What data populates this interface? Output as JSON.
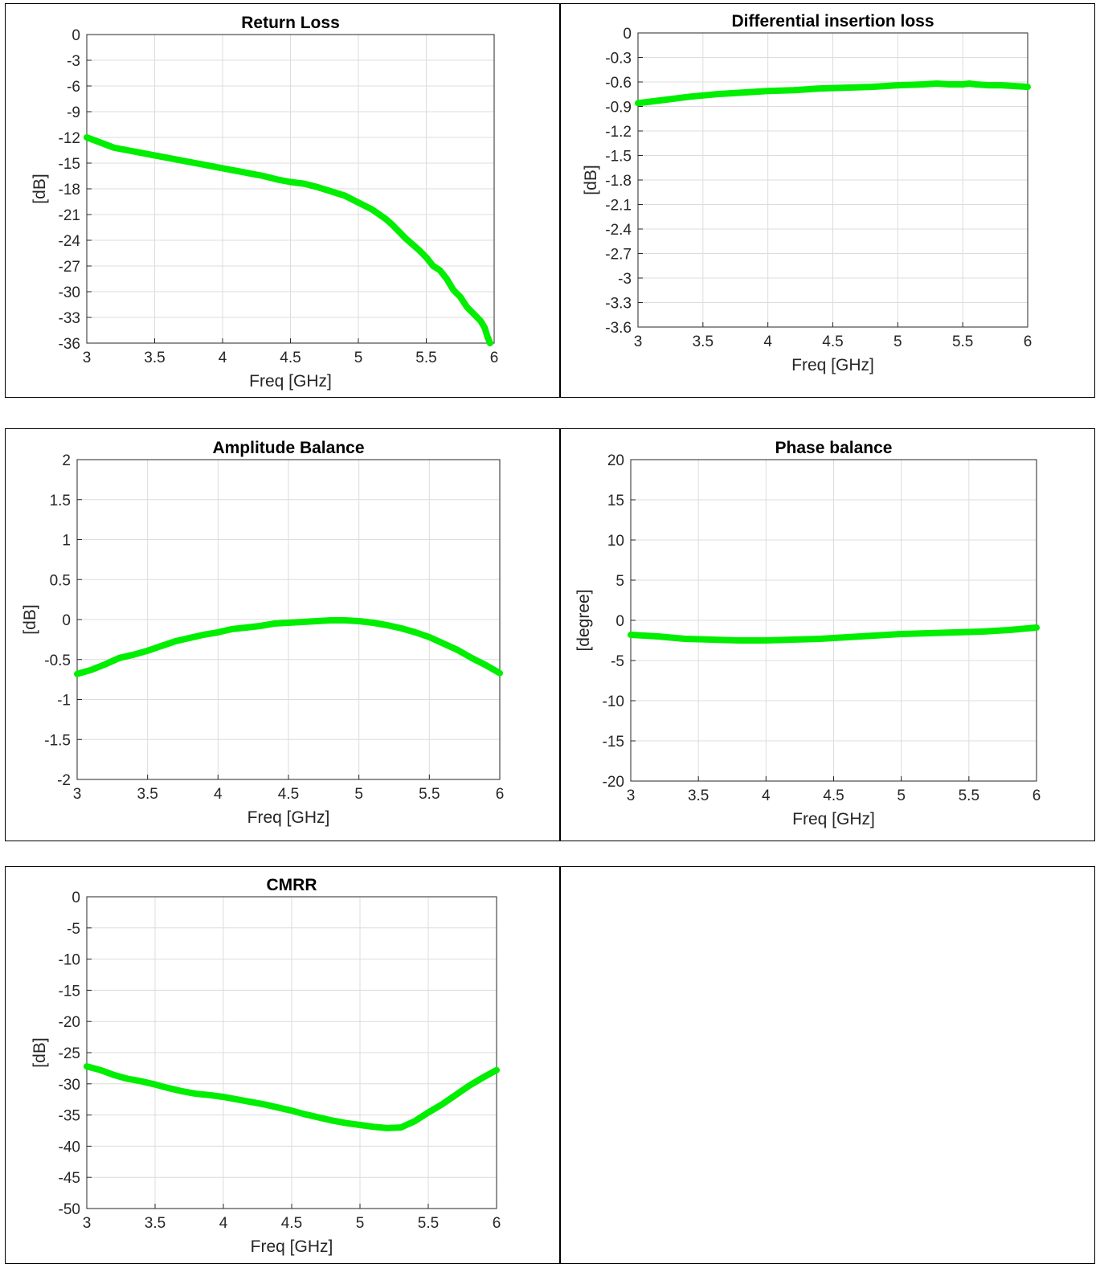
{
  "chart_data": [
    {
      "id": "return-loss",
      "type": "line",
      "title": "Return Loss",
      "xlabel": "Freq [GHz]",
      "ylabel": "[dB]",
      "xlim": [
        3,
        6
      ],
      "ylim": [
        -36,
        0
      ],
      "xticks": [
        3,
        3.5,
        4,
        4.5,
        5,
        5.5,
        6
      ],
      "yticks": [
        0,
        -3,
        -6,
        -9,
        -12,
        -15,
        -18,
        -21,
        -24,
        -27,
        -30,
        -33,
        -36
      ],
      "grid": true,
      "series": [
        {
          "color": "#00ee00",
          "x": [
            3.0,
            3.1,
            3.2,
            3.3,
            3.4,
            3.5,
            3.6,
            3.7,
            3.8,
            3.9,
            4.0,
            4.1,
            4.2,
            4.3,
            4.4,
            4.5,
            4.6,
            4.7,
            4.8,
            4.9,
            5.0,
            5.1,
            5.2,
            5.25,
            5.3,
            5.35,
            5.4,
            5.45,
            5.5,
            5.55,
            5.6,
            5.65,
            5.7,
            5.75,
            5.8,
            5.85,
            5.9,
            5.93,
            5.95,
            5.97
          ],
          "y": [
            -12.0,
            -12.6,
            -13.2,
            -13.5,
            -13.8,
            -14.1,
            -14.4,
            -14.7,
            -15.0,
            -15.3,
            -15.6,
            -15.9,
            -16.2,
            -16.5,
            -16.9,
            -17.2,
            -17.4,
            -17.8,
            -18.3,
            -18.8,
            -19.6,
            -20.4,
            -21.5,
            -22.2,
            -23.0,
            -23.8,
            -24.5,
            -25.2,
            -26.0,
            -27.0,
            -27.5,
            -28.5,
            -29.8,
            -30.6,
            -31.8,
            -32.6,
            -33.4,
            -34.2,
            -35.2,
            -36.0
          ]
        }
      ]
    },
    {
      "id": "differential-insertion-loss",
      "type": "line",
      "title": "Differential insertion loss",
      "xlabel": "Freq [GHz]",
      "ylabel": "[dB]",
      "xlim": [
        3,
        6
      ],
      "ylim": [
        -3.6,
        0
      ],
      "xticks": [
        3,
        3.5,
        4,
        4.5,
        5,
        5.5,
        6
      ],
      "yticks": [
        0,
        -0.3,
        -0.6,
        -0.9,
        -1.2,
        -1.5,
        -1.8,
        -2.1,
        -2.4,
        -2.7,
        -3,
        -3.3,
        -3.6
      ],
      "grid": true,
      "series": [
        {
          "color": "#00ee00",
          "x": [
            3.0,
            3.2,
            3.4,
            3.6,
            3.8,
            4.0,
            4.2,
            4.4,
            4.6,
            4.8,
            5.0,
            5.2,
            5.3,
            5.4,
            5.5,
            5.55,
            5.6,
            5.7,
            5.8,
            5.9,
            6.0
          ],
          "y": [
            -0.86,
            -0.82,
            -0.78,
            -0.75,
            -0.73,
            -0.71,
            -0.7,
            -0.68,
            -0.67,
            -0.66,
            -0.64,
            -0.63,
            -0.62,
            -0.63,
            -0.63,
            -0.62,
            -0.63,
            -0.64,
            -0.64,
            -0.65,
            -0.66
          ]
        }
      ]
    },
    {
      "id": "amplitude-balance",
      "type": "line",
      "title": "Amplitude Balance",
      "xlabel": "Freq [GHz]",
      "ylabel": "[dB]",
      "xlim": [
        3,
        6
      ],
      "ylim": [
        -2,
        2
      ],
      "xticks": [
        3,
        3.5,
        4,
        4.5,
        5,
        5.5,
        6
      ],
      "yticks": [
        2,
        1.5,
        1,
        0.5,
        0,
        -0.5,
        -1,
        -1.5,
        -2
      ],
      "grid": true,
      "series": [
        {
          "color": "#00ee00",
          "x": [
            3.0,
            3.1,
            3.2,
            3.3,
            3.4,
            3.5,
            3.6,
            3.7,
            3.8,
            3.9,
            4.0,
            4.1,
            4.2,
            4.3,
            4.4,
            4.5,
            4.6,
            4.7,
            4.8,
            4.9,
            5.0,
            5.1,
            5.2,
            5.3,
            5.4,
            5.5,
            5.6,
            5.7,
            5.8,
            5.9,
            6.0
          ],
          "y": [
            -0.68,
            -0.63,
            -0.56,
            -0.48,
            -0.44,
            -0.39,
            -0.33,
            -0.27,
            -0.23,
            -0.19,
            -0.16,
            -0.12,
            -0.1,
            -0.08,
            -0.05,
            -0.04,
            -0.03,
            -0.02,
            -0.01,
            -0.01,
            -0.02,
            -0.04,
            -0.07,
            -0.11,
            -0.16,
            -0.22,
            -0.3,
            -0.38,
            -0.48,
            -0.57,
            -0.67
          ]
        }
      ]
    },
    {
      "id": "phase-balance",
      "type": "line",
      "title": "Phase balance",
      "xlabel": "Freq [GHz]",
      "ylabel": "[degree]",
      "xlim": [
        3,
        6
      ],
      "ylim": [
        -20,
        20
      ],
      "xticks": [
        3,
        3.5,
        4,
        4.5,
        5,
        5.5,
        6
      ],
      "yticks": [
        20,
        15,
        10,
        5,
        0,
        -5,
        -10,
        -15,
        -20
      ],
      "grid": true,
      "series": [
        {
          "color": "#00ee00",
          "x": [
            3.0,
            3.2,
            3.4,
            3.6,
            3.8,
            4.0,
            4.2,
            4.4,
            4.6,
            4.8,
            5.0,
            5.2,
            5.4,
            5.6,
            5.8,
            6.0
          ],
          "y": [
            -1.8,
            -2.0,
            -2.3,
            -2.4,
            -2.5,
            -2.5,
            -2.4,
            -2.3,
            -2.1,
            -1.9,
            -1.7,
            -1.6,
            -1.5,
            -1.4,
            -1.2,
            -0.9
          ]
        }
      ]
    },
    {
      "id": "cmrr",
      "type": "line",
      "title": "CMRR",
      "xlabel": "Freq [GHz]",
      "ylabel": "[dB]",
      "xlim": [
        3,
        6
      ],
      "ylim": [
        -50,
        0
      ],
      "xticks": [
        3,
        3.5,
        4,
        4.5,
        5,
        5.5,
        6
      ],
      "yticks": [
        0,
        -5,
        -10,
        -15,
        -20,
        -25,
        -30,
        -35,
        -40,
        -45,
        -50
      ],
      "grid": true,
      "series": [
        {
          "color": "#00ee00",
          "x": [
            3.0,
            3.1,
            3.2,
            3.3,
            3.4,
            3.5,
            3.6,
            3.7,
            3.8,
            3.9,
            4.0,
            4.1,
            4.2,
            4.3,
            4.4,
            4.5,
            4.6,
            4.7,
            4.8,
            4.9,
            5.0,
            5.1,
            5.2,
            5.3,
            5.35,
            5.4,
            5.5,
            5.6,
            5.7,
            5.8,
            5.9,
            6.0
          ],
          "y": [
            -27.2,
            -27.8,
            -28.6,
            -29.2,
            -29.6,
            -30.1,
            -30.7,
            -31.2,
            -31.6,
            -31.8,
            -32.1,
            -32.5,
            -32.9,
            -33.3,
            -33.8,
            -34.3,
            -34.9,
            -35.4,
            -35.9,
            -36.3,
            -36.6,
            -36.9,
            -37.1,
            -37.0,
            -36.5,
            -36.0,
            -34.6,
            -33.3,
            -31.8,
            -30.3,
            -29.0,
            -27.8
          ]
        }
      ]
    }
  ]
}
